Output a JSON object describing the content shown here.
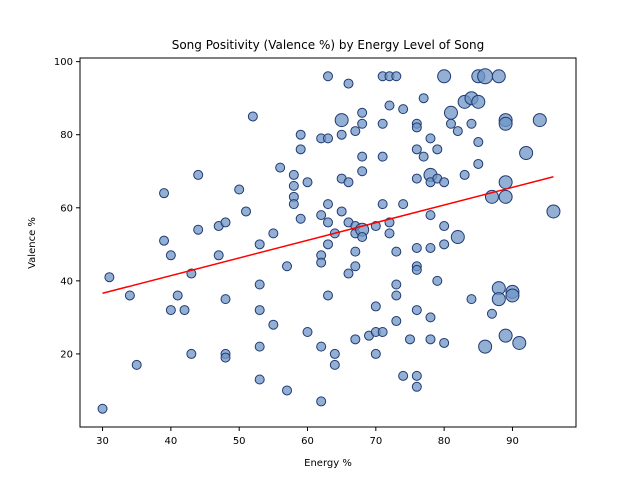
{
  "chart_data": {
    "type": "scatter",
    "title": "Song Positivity (Valence %) by Energy Level of Song",
    "xlabel": "Energy %",
    "ylabel": "Valence %",
    "xlim": [
      26.7,
      99.3
    ],
    "ylim": [
      0,
      101
    ],
    "xticks": [
      30,
      40,
      50,
      60,
      70,
      80,
      90
    ],
    "yticks": [
      20,
      40,
      60,
      80,
      100
    ],
    "grid": false,
    "colors": {
      "point_fill": "#6f95c5",
      "point_edge": "#1f3a73",
      "trend": "#ff0000"
    },
    "trendline": {
      "x": [
        30,
        96
      ],
      "y": [
        36.6,
        68.5
      ]
    },
    "series": [
      {
        "points": [
          [
            30,
            5,
            1
          ],
          [
            31,
            41,
            1
          ],
          [
            34,
            36,
            1
          ],
          [
            35,
            17,
            1
          ],
          [
            39,
            64,
            1
          ],
          [
            39,
            51,
            1
          ],
          [
            40,
            47,
            1
          ],
          [
            40,
            32,
            1
          ],
          [
            41,
            36,
            1
          ],
          [
            42,
            32,
            1
          ],
          [
            43,
            42,
            1
          ],
          [
            43,
            20,
            1
          ],
          [
            44,
            69,
            1
          ],
          [
            44,
            54,
            1
          ],
          [
            47,
            55,
            1
          ],
          [
            47,
            47,
            1
          ],
          [
            48,
            56,
            1
          ],
          [
            48,
            35,
            1
          ],
          [
            48,
            20,
            1
          ],
          [
            48,
            19,
            1
          ],
          [
            50,
            65,
            1
          ],
          [
            51,
            59,
            1
          ],
          [
            52,
            85,
            1
          ],
          [
            53,
            50,
            1
          ],
          [
            53,
            39,
            1
          ],
          [
            53,
            32,
            1
          ],
          [
            53,
            22,
            1
          ],
          [
            53,
            13,
            1
          ],
          [
            55,
            53,
            1
          ],
          [
            55,
            28,
            1
          ],
          [
            56,
            71,
            1
          ],
          [
            57,
            44,
            1
          ],
          [
            57,
            10,
            1
          ],
          [
            58,
            69,
            1
          ],
          [
            58,
            66,
            1
          ],
          [
            58,
            63,
            1
          ],
          [
            58,
            61,
            1
          ],
          [
            59,
            80,
            1
          ],
          [
            59,
            76,
            1
          ],
          [
            59,
            57,
            1
          ],
          [
            60,
            67,
            1
          ],
          [
            60,
            26,
            1
          ],
          [
            62,
            79,
            1
          ],
          [
            62,
            58,
            1
          ],
          [
            62,
            47,
            1
          ],
          [
            62,
            45,
            1
          ],
          [
            62,
            22,
            1
          ],
          [
            62,
            7,
            1
          ],
          [
            63,
            96,
            1
          ],
          [
            63,
            79,
            1
          ],
          [
            63,
            61,
            1
          ],
          [
            63,
            56,
            1
          ],
          [
            63,
            50,
            1
          ],
          [
            63,
            36,
            1
          ],
          [
            64,
            53,
            1
          ],
          [
            64,
            20,
            1
          ],
          [
            64,
            17,
            1
          ],
          [
            65,
            84,
            2
          ],
          [
            65,
            80,
            1
          ],
          [
            65,
            68,
            1
          ],
          [
            65,
            59,
            1
          ],
          [
            66,
            94,
            1
          ],
          [
            66,
            67,
            1
          ],
          [
            66,
            56,
            1
          ],
          [
            66,
            42,
            1
          ],
          [
            67,
            81,
            1
          ],
          [
            67,
            55,
            1
          ],
          [
            67,
            53,
            1
          ],
          [
            67,
            48,
            1
          ],
          [
            67,
            44,
            1
          ],
          [
            67,
            24,
            1
          ],
          [
            68,
            86,
            1
          ],
          [
            68,
            83,
            1
          ],
          [
            68,
            74,
            1
          ],
          [
            68,
            70,
            1
          ],
          [
            68,
            54,
            2
          ],
          [
            68,
            52,
            1
          ],
          [
            69,
            25,
            1
          ],
          [
            70,
            55,
            1
          ],
          [
            70,
            33,
            1
          ],
          [
            70,
            26,
            1
          ],
          [
            70,
            20,
            1
          ],
          [
            71,
            96,
            1
          ],
          [
            71,
            83,
            1
          ],
          [
            71,
            74,
            1
          ],
          [
            71,
            61,
            1
          ],
          [
            71,
            26,
            1
          ],
          [
            72,
            96,
            1
          ],
          [
            72,
            88,
            1
          ],
          [
            72,
            56,
            1
          ],
          [
            72,
            53,
            1
          ],
          [
            73,
            96,
            1
          ],
          [
            73,
            48,
            1
          ],
          [
            73,
            39,
            1
          ],
          [
            73,
            36,
            1
          ],
          [
            73,
            29,
            1
          ],
          [
            74,
            87,
            1
          ],
          [
            74,
            61,
            1
          ],
          [
            74,
            14,
            1
          ],
          [
            75,
            24,
            1
          ],
          [
            76,
            83,
            1
          ],
          [
            76,
            82,
            1
          ],
          [
            76,
            76,
            1
          ],
          [
            76,
            68,
            1
          ],
          [
            76,
            49,
            1
          ],
          [
            76,
            44,
            1
          ],
          [
            76,
            43,
            1
          ],
          [
            76,
            32,
            1
          ],
          [
            76,
            14,
            1
          ],
          [
            76,
            11,
            1
          ],
          [
            77,
            90,
            1
          ],
          [
            77,
            74,
            1
          ],
          [
            78,
            79,
            1
          ],
          [
            78,
            69,
            2
          ],
          [
            78,
            67,
            1
          ],
          [
            78,
            58,
            1
          ],
          [
            78,
            49,
            1
          ],
          [
            78,
            30,
            1
          ],
          [
            78,
            24,
            1
          ],
          [
            79,
            76,
            1
          ],
          [
            79,
            68,
            1
          ],
          [
            79,
            40,
            1
          ],
          [
            80,
            96,
            2
          ],
          [
            80,
            67,
            1
          ],
          [
            80,
            55,
            1
          ],
          [
            80,
            50,
            1
          ],
          [
            80,
            23,
            1
          ],
          [
            81,
            86,
            2
          ],
          [
            81,
            83,
            1
          ],
          [
            82,
            81,
            1
          ],
          [
            82,
            52,
            2
          ],
          [
            83,
            89,
            2
          ],
          [
            83,
            69,
            1
          ],
          [
            84,
            90,
            2
          ],
          [
            84,
            83,
            1
          ],
          [
            84,
            35,
            1
          ],
          [
            85,
            96,
            2
          ],
          [
            85,
            89,
            2
          ],
          [
            85,
            78,
            1
          ],
          [
            85,
            72,
            1
          ],
          [
            86,
            96,
            3
          ],
          [
            86,
            22,
            2
          ],
          [
            87,
            63,
            2
          ],
          [
            87,
            31,
            1
          ],
          [
            88,
            96,
            2
          ],
          [
            88,
            38,
            2
          ],
          [
            88,
            35,
            2
          ],
          [
            89,
            84,
            2
          ],
          [
            89,
            83,
            2
          ],
          [
            89,
            67,
            2
          ],
          [
            89,
            63,
            2
          ],
          [
            89,
            25,
            2
          ],
          [
            90,
            37,
            2
          ],
          [
            90,
            36,
            2
          ],
          [
            91,
            23,
            2
          ],
          [
            92,
            75,
            2
          ],
          [
            94,
            84,
            2
          ],
          [
            96,
            59,
            2
          ]
        ]
      }
    ]
  }
}
